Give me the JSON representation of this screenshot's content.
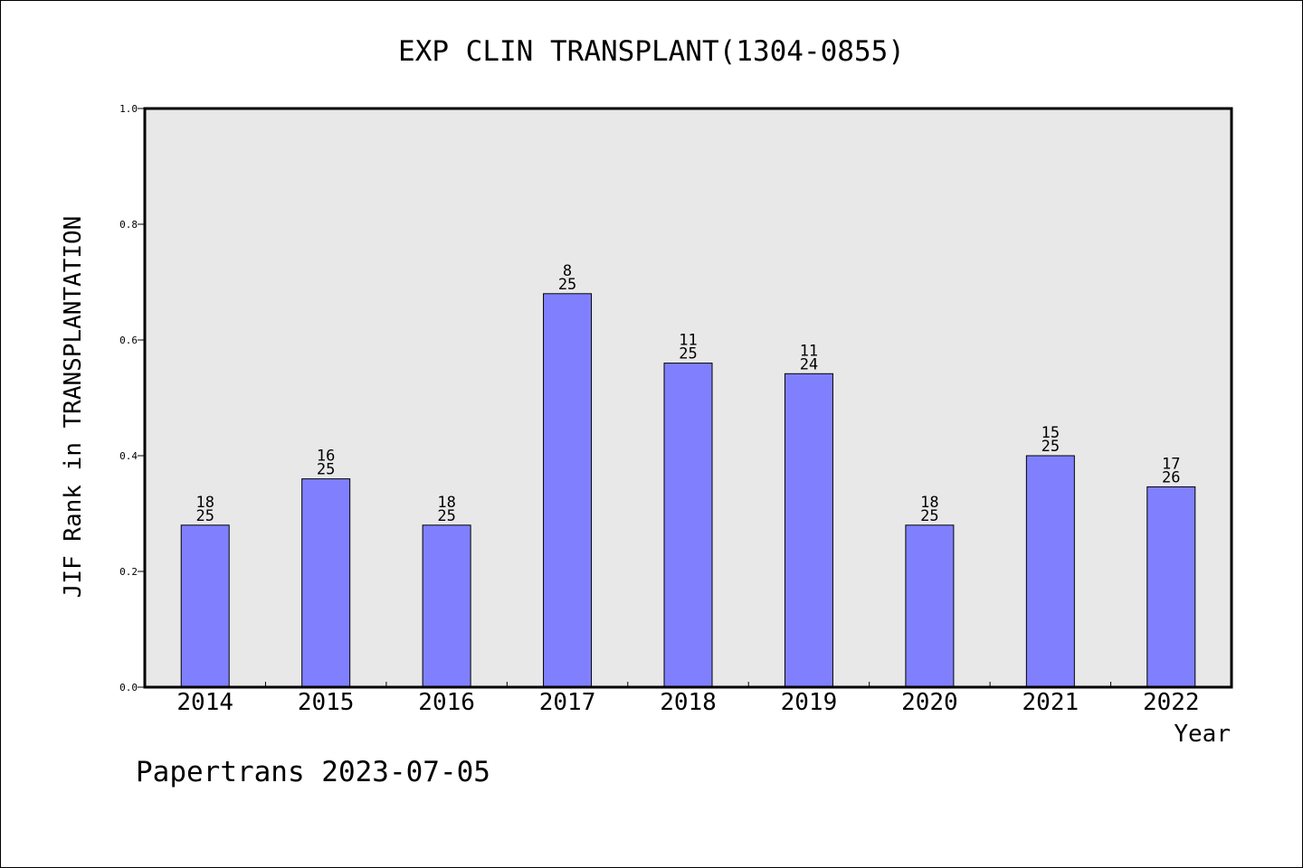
{
  "chart_data": {
    "type": "bar",
    "title": "EXP CLIN TRANSPLANT(1304-0855)",
    "xlabel": "Year",
    "ylabel": "JIF Rank in TRANSPLANTATION",
    "ylim": [
      0,
      1.0
    ],
    "yticks": [
      "0.0",
      "0.2",
      "0.4",
      "0.6",
      "0.8",
      "1.0"
    ],
    "categories": [
      "2014",
      "2015",
      "2016",
      "2017",
      "2018",
      "2019",
      "2020",
      "2021",
      "2022"
    ],
    "values": [
      0.28,
      0.36,
      0.28,
      0.68,
      0.56,
      0.5417,
      0.28,
      0.4,
      0.3462
    ],
    "rank_labels": [
      {
        "rank": "18",
        "total": "25"
      },
      {
        "rank": "16",
        "total": "25"
      },
      {
        "rank": "18",
        "total": "25"
      },
      {
        "rank": "8",
        "total": "25"
      },
      {
        "rank": "11",
        "total": "25"
      },
      {
        "rank": "11",
        "total": "24"
      },
      {
        "rank": "18",
        "total": "25"
      },
      {
        "rank": "15",
        "total": "25"
      },
      {
        "rank": "17",
        "total": "26"
      }
    ],
    "bar_color": "#8080ff",
    "plot_background": "#e8e8e8",
    "grid": false
  },
  "footer": {
    "text": "Papertrans 2023-07-05"
  }
}
